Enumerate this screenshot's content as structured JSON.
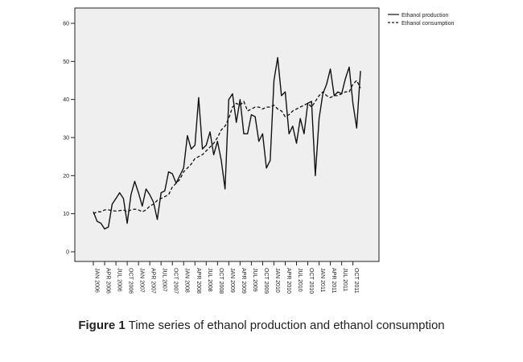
{
  "caption": {
    "label": "Figure 1",
    "text": "Time series of ethanol production and ethanol consumption"
  },
  "chart_data": {
    "type": "line",
    "title": "",
    "xlabel": "",
    "ylabel": "",
    "ylim": [
      0,
      60
    ],
    "yticks": [
      0,
      10,
      20,
      30,
      40,
      50,
      60
    ],
    "grid": false,
    "legend_position": "top-right",
    "background": "#efefef",
    "x": [
      "JAN 2006",
      "FEB 2006",
      "MAR 2006",
      "APR 2006",
      "MAY 2006",
      "JUN 2006",
      "JUL 2006",
      "AUG 2006",
      "SEP 2006",
      "OCT 2006",
      "NOV 2006",
      "DEC 2006",
      "JAN 2007",
      "FEB 2007",
      "MAR 2007",
      "APR 2007",
      "MAY 2007",
      "JUN 2007",
      "JUL 2007",
      "AUG 2007",
      "SEP 2007",
      "OCT 2007",
      "NOV 2007",
      "DEC 2007",
      "JAN 2008",
      "FEB 2008",
      "MAR 2008",
      "APR 2008",
      "MAY 2008",
      "JUN 2008",
      "JUL 2008",
      "AUG 2008",
      "SEP 2008",
      "OCT 2008",
      "NOV 2008",
      "DEC 2008",
      "JAN 2009",
      "FEB 2009",
      "MAR 2009",
      "APR 2009",
      "MAY 2009",
      "JUN 2009",
      "JUL 2009",
      "AUG 2009",
      "SEP 2009",
      "OCT 2009",
      "NOV 2009",
      "DEC 2009",
      "JAN 2010",
      "FEB 2010",
      "MAR 2010",
      "APR 2010",
      "MAY 2010",
      "JUN 2010",
      "JUL 2010",
      "AUG 2010",
      "SEP 2010",
      "OCT 2010",
      "NOV 2010",
      "DEC 2010",
      "JAN 2011",
      "FEB 2011",
      "MAR 2011",
      "APR 2011",
      "MAY 2011",
      "JUN 2011",
      "JUL 2011",
      "AUG 2011",
      "SEP 2011",
      "OCT 2011",
      "NOV 2011",
      "DEC 2011"
    ],
    "tick_labels": [
      "JAN 2006",
      "APR 2006",
      "JUL 2006",
      "OCT 2006",
      "JAN 2007",
      "APR 2007",
      "JUL 2007",
      "OCT 2007",
      "JAN 2008",
      "APR 2008",
      "JUL 2008",
      "OCT 2008",
      "JAN 2009",
      "APR 2009",
      "JUL 2009",
      "OCT 2009",
      "JAN 2010",
      "APR 2010",
      "JUL 2010",
      "OCT 2010",
      "JAN 2011",
      "APR 2011",
      "JUL 2011",
      "OCT 2011"
    ],
    "series": [
      {
        "name": "Ethanol production",
        "style": "solid",
        "color": "#111111",
        "values": [
          10.5,
          8,
          7.5,
          6,
          6.5,
          12.5,
          14,
          15.5,
          14,
          7.5,
          15,
          18.5,
          15.5,
          12,
          16.5,
          15,
          13,
          8.5,
          15.5,
          16,
          21,
          20.5,
          18,
          20,
          22,
          30.5,
          27,
          28,
          40.5,
          27,
          28,
          31.5,
          25.5,
          29,
          24,
          16.5,
          40,
          41.5,
          34,
          40,
          31,
          31,
          36,
          35.5,
          29,
          31,
          22,
          24,
          45,
          51,
          41,
          42,
          31,
          33,
          28.5,
          35,
          31,
          39,
          39.5,
          20,
          35,
          41.5,
          44,
          48,
          41,
          42,
          41.5,
          45.5,
          48.5,
          39,
          32.5,
          47.5
        ]
      },
      {
        "name": "Ethanol consumption",
        "style": "dashed",
        "color": "#111111",
        "values": [
          10,
          10.5,
          10.5,
          11,
          11,
          10.8,
          10.7,
          10.8,
          11,
          10.5,
          11,
          11.2,
          11,
          10.5,
          11,
          12,
          12.5,
          13.5,
          14,
          14.5,
          15,
          17,
          18,
          19,
          21,
          22,
          23,
          24.5,
          25,
          25.5,
          26.5,
          27.5,
          28.5,
          30,
          32,
          33,
          35,
          38,
          39,
          38.5,
          39.5,
          37,
          37.5,
          38,
          38,
          37.5,
          38,
          38,
          38.5,
          37.5,
          37,
          35.5,
          36,
          37,
          37.5,
          38,
          38.5,
          39,
          38,
          39.5,
          41,
          42,
          41,
          40.5,
          41,
          41,
          41.5,
          42,
          42,
          44,
          45,
          43
        ]
      }
    ]
  }
}
